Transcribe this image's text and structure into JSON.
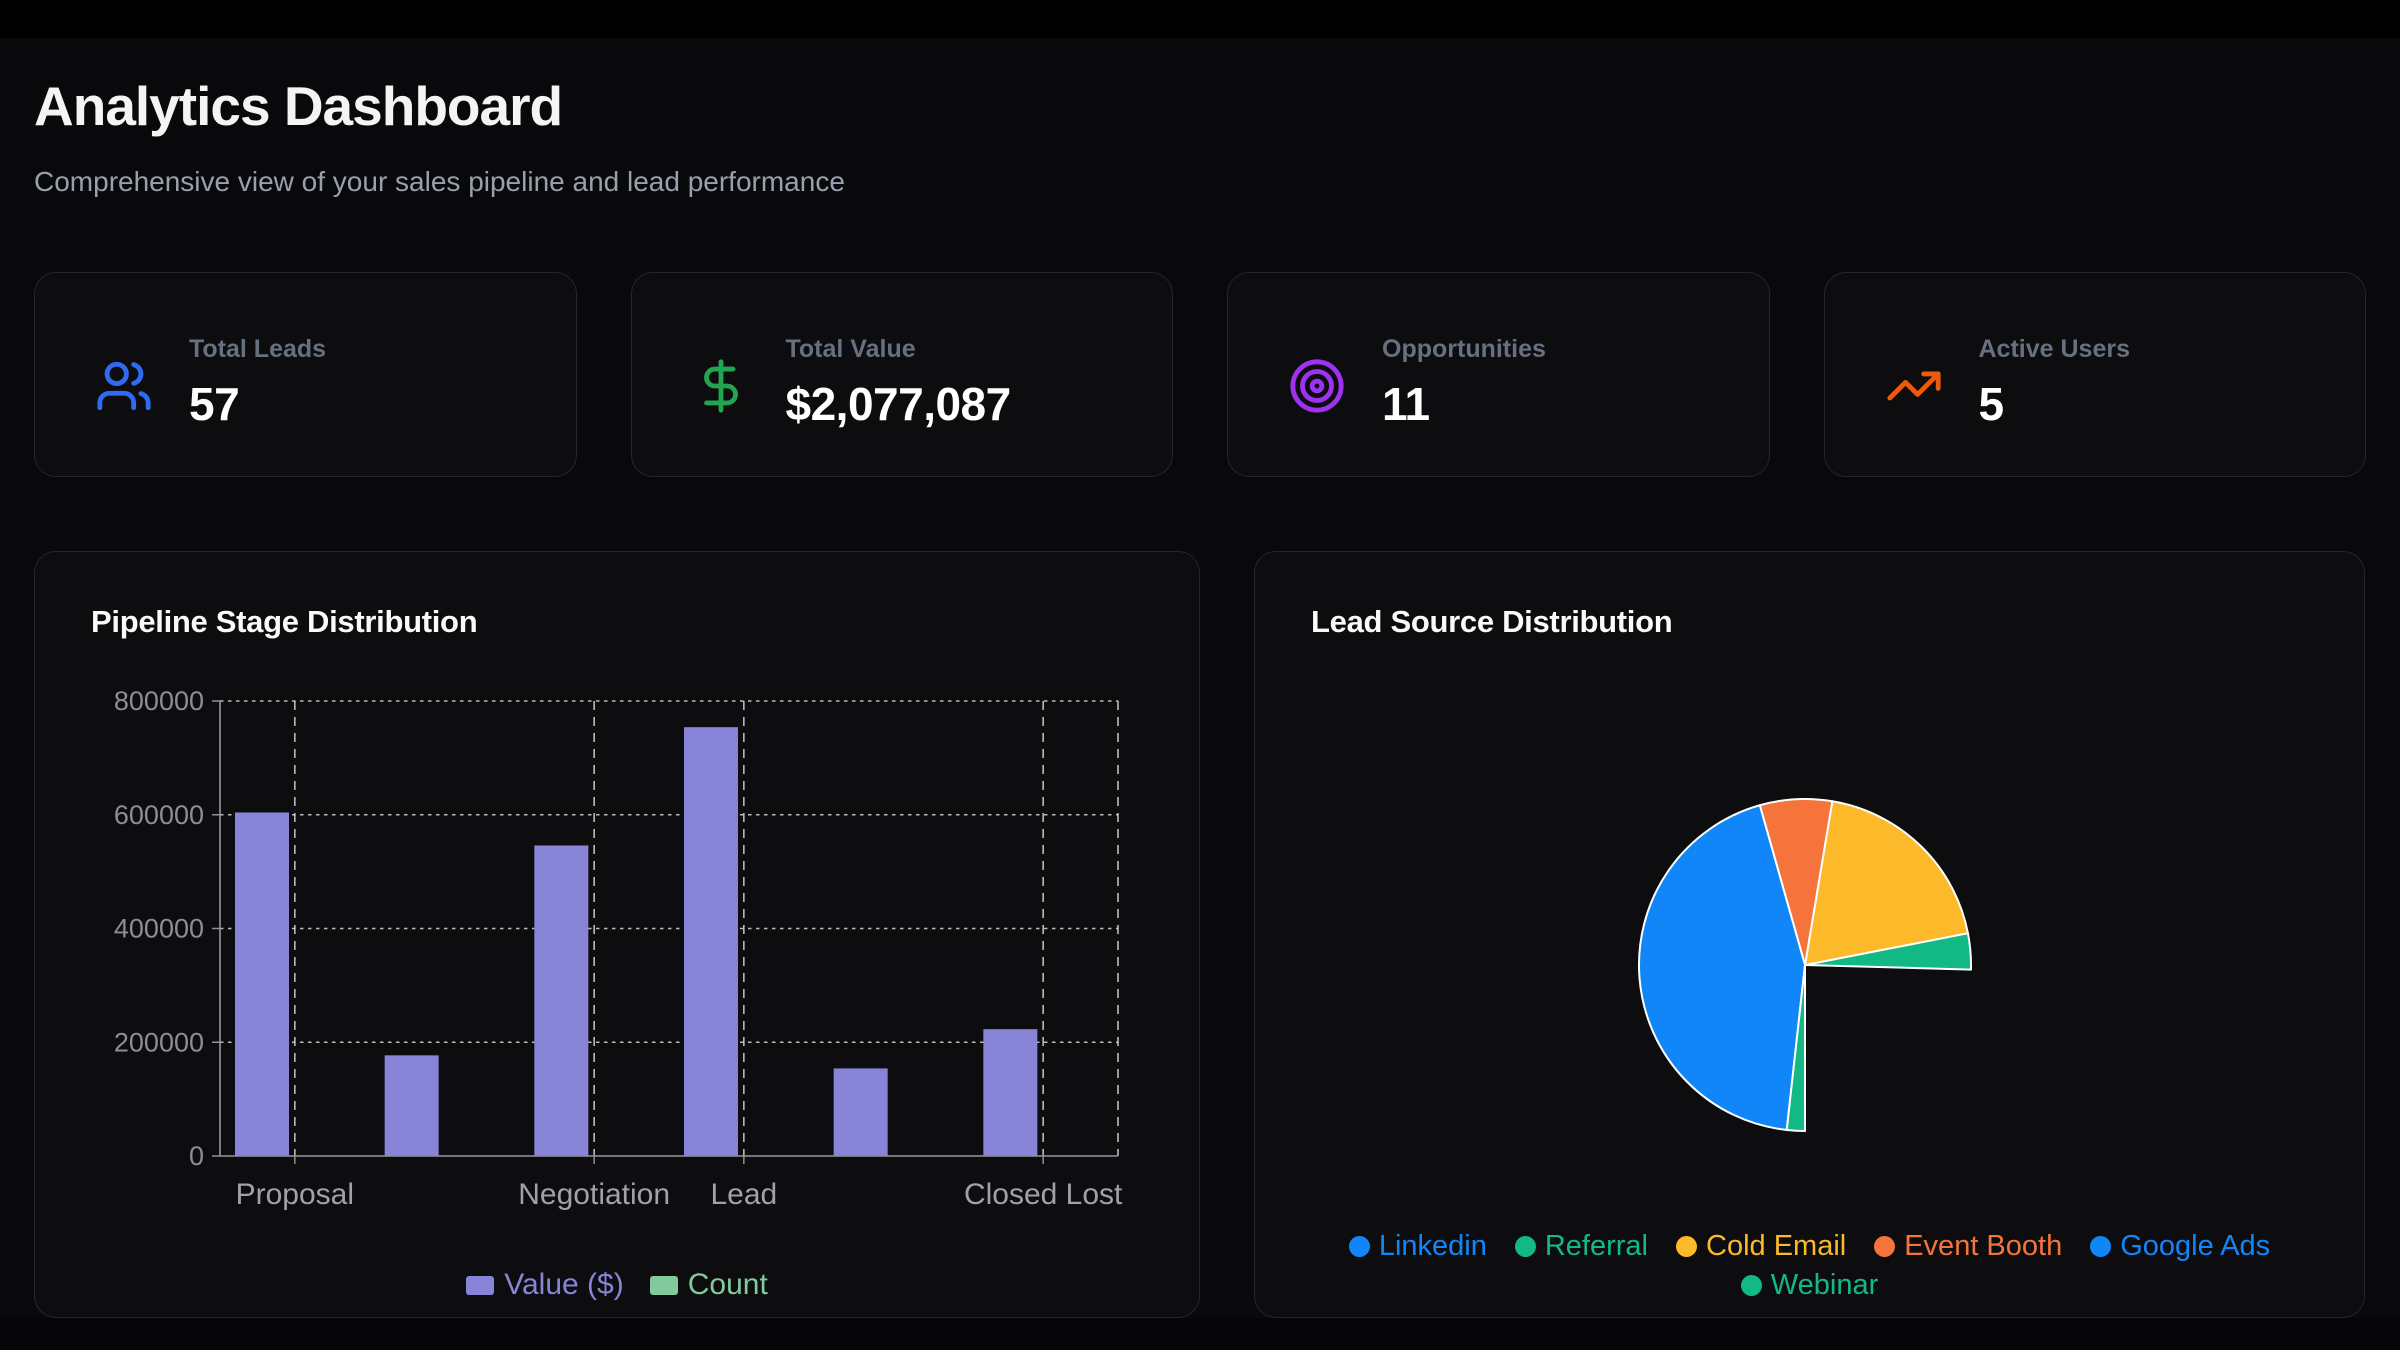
{
  "header": {
    "title": "Analytics Dashboard",
    "subtitle": "Comprehensive view of your sales pipeline and lead performance"
  },
  "stats": [
    {
      "label": "Total Leads",
      "value": "57",
      "icon": "users-icon",
      "icon_color": "#2e6bf2"
    },
    {
      "label": "Total Value",
      "value": "$2,077,087",
      "icon": "dollar-sign-icon",
      "icon_color": "#21a550"
    },
    {
      "label": "Opportunities",
      "value": "11",
      "icon": "target-icon",
      "icon_color": "#9d32f1"
    },
    {
      "label": "Active Users",
      "value": "5",
      "icon": "trending-up-icon",
      "icon_color": "#ec5b0d"
    }
  ],
  "chart_data": [
    {
      "type": "bar",
      "title": "Pipeline Stage Distribution",
      "categories": [
        "Proposal",
        "",
        "Negotiation",
        "Lead",
        "",
        "Closed Lost"
      ],
      "x_axis": {
        "tick_labels": [
          "Proposal",
          "Negotiation",
          "Lead",
          "Closed Lost"
        ],
        "labeled_category_indices": [
          0,
          2,
          3,
          5
        ]
      },
      "y_axis": {
        "ticks": [
          0,
          200000,
          400000,
          600000,
          800000
        ],
        "range": [
          0,
          800000
        ]
      },
      "series": [
        {
          "name": "Value ($)",
          "color": "#8884d8",
          "values": [
            604000,
            177000,
            546000,
            754000,
            154000,
            223000
          ]
        },
        {
          "name": "Count",
          "color": "#82ca9d",
          "values": [
            0,
            0,
            0,
            0,
            0,
            0
          ],
          "note": "Count bars are invisibly small at the dollar axis scale"
        }
      ],
      "grid": {
        "style": "dashed",
        "color": "#d9d9d9"
      },
      "legend": {
        "position": "bottom",
        "entries": [
          {
            "label": "Value ($)",
            "color": "#8884d8"
          },
          {
            "label": "Count",
            "color": "#82ca9d"
          }
        ]
      }
    },
    {
      "type": "pie",
      "title": "Lead Source Distribution",
      "total": 57,
      "slices": [
        {
          "label": "Linkedin",
          "value": 14,
          "percent": 24.6,
          "color": "#1086f8",
          "visible": false
        },
        {
          "label": "Referral",
          "value": 2,
          "percent": 3.5,
          "color": "#12b985",
          "visible": true
        },
        {
          "label": "Cold Email",
          "value": 11,
          "percent": 19.3,
          "color": "#fcb92a",
          "visible": true
        },
        {
          "label": "Event Booth",
          "value": 4,
          "percent": 7.0,
          "color": "#f5743c",
          "visible": true
        },
        {
          "label": "Google Ads",
          "value": 25,
          "percent": 43.9,
          "color": "#1086f8",
          "visible": true
        },
        {
          "label": "Webinar",
          "value": 1,
          "percent": 1.8,
          "color": "#12b985",
          "visible": true
        }
      ],
      "geometry": {
        "start_angle_deg": -90,
        "direction": "counterclockwise",
        "stroke": "#ffffff",
        "note": "Linkedin sector (bottom-right quadrant) renders as background / not visible"
      },
      "legend": {
        "position": "bottom",
        "rows": [
          [
            "Linkedin",
            "Referral",
            "Cold Email",
            "Event Booth",
            "Google Ads"
          ],
          [
            "Webinar"
          ]
        ]
      }
    }
  ]
}
